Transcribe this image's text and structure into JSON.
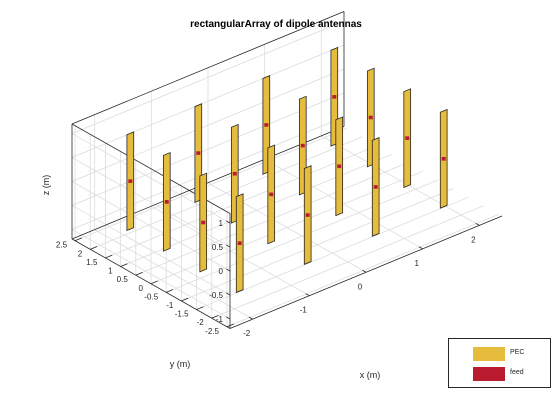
{
  "chart_data": {
    "type": "3d-structure",
    "title": "rectangularArray of dipole antennas",
    "xlabel": "x (m)",
    "ylabel": "y (m)",
    "zlabel": "z (m)",
    "xlim": [
      -2.4,
      2.4
    ],
    "ylim": [
      -2.6,
      2.6
    ],
    "zlim": [
      -1.2,
      1.2
    ],
    "xticks": [
      "-2",
      "-1",
      "0",
      "1",
      "2"
    ],
    "yticks": [
      "-2.5",
      "-2",
      "-1.5",
      "-1",
      "-0.5",
      "0",
      "0.5",
      "1",
      "1.5",
      "2",
      "2.5"
    ],
    "zticks": [
      "-1",
      "-0.5",
      "0",
      "0.5",
      "1"
    ],
    "grid": true,
    "elements": {
      "count": 16,
      "x": [
        -1.8,
        -0.6,
        0.6,
        1.8
      ],
      "y": [
        -1.8,
        -0.6,
        0.6,
        1.8
      ],
      "z": [
        -1,
        1
      ],
      "feed_z": 0
    },
    "colors": {
      "conductor": "#e6bc3c",
      "feed": "#bb1b2f",
      "edge": "#262626"
    },
    "legend": {
      "position": "bottom-right",
      "entries": [
        "PEC",
        "feed"
      ]
    }
  }
}
